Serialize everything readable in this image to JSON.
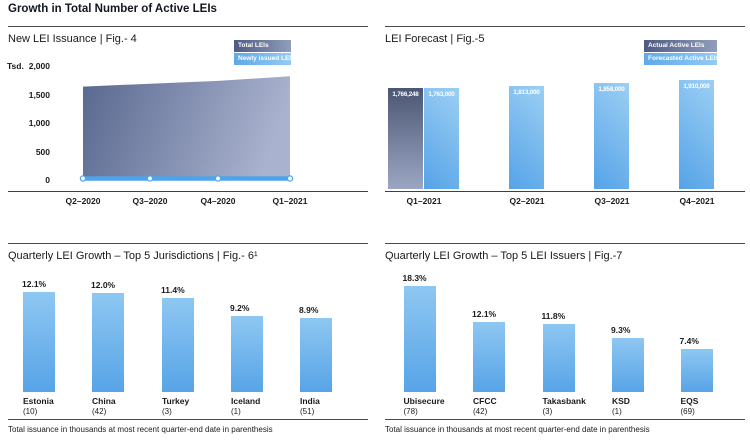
{
  "page": {
    "header": "Growth in Total Number of Active LEIs"
  },
  "footnote": "Total issuance in thousands at most recent quarter-end date in parenthesis",
  "colors": {
    "light_blue": "#57A4E7",
    "light_blue_soft": "#8EC7F2",
    "dark_blue_gray": "#4B5674",
    "dark_blue_gray_soft": "#9BA7C2",
    "line_blue": "#4FA3E7",
    "axis": "#3F3F3F",
    "text": "#1A1A1A"
  },
  "chart_data": [
    {
      "id": "fig4",
      "type": "area",
      "title": "New LEI Issuance  |  Fig.- 4",
      "y_unit_label": "Tsd.",
      "ylim": [
        0,
        2000
      ],
      "yticks": [
        "2,000",
        "1,500",
        "1,000",
        "500",
        "0"
      ],
      "categories": [
        "Q2–2020",
        "Q3–2020",
        "Q4–2020",
        "Q1–2021"
      ],
      "series": [
        {
          "name": "Total LEIs",
          "kind": "area",
          "values": [
            1640,
            1690,
            1740,
            1820
          ]
        },
        {
          "name": "Newly issued LEIs",
          "kind": "line",
          "values": [
            35,
            35,
            35,
            35
          ]
        }
      ],
      "legend_position": "top-right",
      "grid": false
    },
    {
      "id": "fig5",
      "type": "bar",
      "title": "LEI Forecast  |  Fig.-5",
      "categories": [
        "Q1–2021",
        "Q2–2021",
        "Q3–2021",
        "Q4–2021"
      ],
      "series": [
        {
          "name": "Actual Active LEIs",
          "values": [
            1766248,
            null,
            null,
            null
          ]
        },
        {
          "name": "Forecasted Active LEIs",
          "values": [
            1763000,
            1813000,
            1858000,
            1910000
          ]
        }
      ],
      "bar_labels": [
        [
          "1,766,248",
          "1,763,000"
        ],
        [
          "1,813,000"
        ],
        [
          "1,858,000"
        ],
        [
          "1,910,000"
        ]
      ],
      "legend_position": "top-right",
      "grid": false
    },
    {
      "id": "fig6",
      "type": "bar",
      "title": "Quarterly LEI Growth – Top 5 Jurisdictions  |  Fig.- 6¹",
      "categories": [
        "Estonia",
        "China",
        "Turkey",
        "Iceland",
        "India"
      ],
      "category_notes": [
        "(10)",
        "(42)",
        "(3)",
        "(1)",
        "(51)"
      ],
      "values": [
        12.1,
        12.0,
        11.4,
        9.2,
        8.9
      ],
      "value_labels": [
        "12.1%",
        "12.0%",
        "11.4%",
        "9.2%",
        "8.9%"
      ],
      "grid": false
    },
    {
      "id": "fig7",
      "type": "bar",
      "title": "Quarterly LEI Growth – Top 5 LEI Issuers  |  Fig.-7",
      "categories": [
        "Ubisecure",
        "CFCC",
        "Takasbank",
        "KSD",
        "EQS"
      ],
      "category_notes": [
        "(78)",
        "(42)",
        "(3)",
        "(1)",
        "(69)"
      ],
      "values": [
        18.3,
        12.1,
        11.8,
        9.3,
        7.4
      ],
      "value_labels": [
        "18.3%",
        "12.1%",
        "11.8%",
        "9.3%",
        "7.4%"
      ],
      "grid": false
    }
  ]
}
